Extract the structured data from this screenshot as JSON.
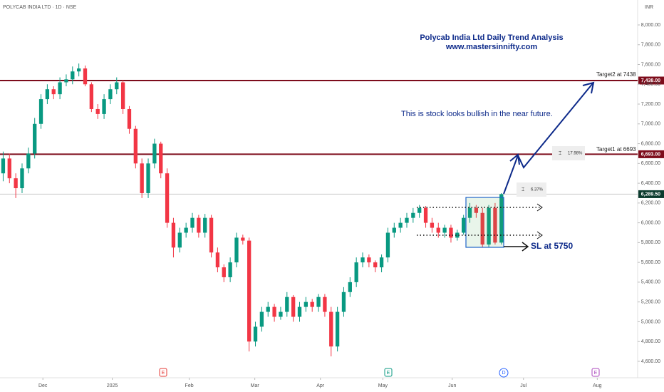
{
  "chart_data": {
    "type": "candlestick",
    "symbol": "POLYCAB INDIA LTD · 1D · NSE",
    "currency": "INR",
    "title": "Polycab India Ltd Daily Trend Analysis",
    "subtitle": "www.mastersinnifty.com",
    "annotations": [
      "This is stock looks bullish in the near future.",
      "Target2 at 7438",
      "Target1 at 6693",
      "SL at 5750",
      "17.98%",
      "6.37%"
    ],
    "up_color": "#089981",
    "down_color": "#f23645",
    "open": [
      6500,
      6650,
      6450,
      6350,
      6550,
      6700,
      7000,
      7250,
      7350,
      7300,
      7420,
      7450,
      7530,
      7560,
      7400,
      7150,
      7100,
      7250,
      7350,
      7420,
      7150,
      6950,
      6600,
      6300,
      6600,
      6800,
      6500,
      6000,
      5750,
      5900,
      5950,
      6050,
      5900,
      6050,
      5700,
      5550,
      5450,
      5600,
      5850,
      5820,
      4800,
      4950,
      5100,
      5150,
      5050,
      5100,
      5250,
      5050,
      5150,
      5200,
      5150,
      5250,
      5100,
      4750,
      5100,
      5300,
      5400,
      5600,
      5650,
      5600,
      5550,
      5650,
      5900,
      5950,
      6000,
      6050,
      6100,
      6150,
      6000,
      5950,
      5900,
      5950,
      5850,
      5900,
      6050,
      6150,
      6100,
      5780,
      6150,
      5800
    ],
    "high": [
      6720,
      6700,
      6500,
      6600,
      6760,
      7060,
      7300,
      7400,
      7380,
      7470,
      7500,
      7580,
      7610,
      7590,
      7420,
      7200,
      7300,
      7400,
      7470,
      7440,
      7180,
      6980,
      6650,
      6650,
      6850,
      6820,
      6550,
      6050,
      5950,
      6000,
      6100,
      6080,
      6090,
      6080,
      5750,
      5580,
      5650,
      5900,
      5880,
      5850,
      5000,
      5150,
      5200,
      5180,
      5150,
      5300,
      5270,
      5200,
      5250,
      5230,
      5280,
      5280,
      5150,
      5150,
      5350,
      5450,
      5650,
      5700,
      5680,
      5620,
      5680,
      5950,
      6000,
      6050,
      6100,
      6150,
      6180,
      6170,
      6050,
      6000,
      5980,
      5980,
      5930,
      6080,
      6200,
      6180,
      6150,
      6180,
      6200,
      6300
    ],
    "low": [
      6420,
      6400,
      6250,
      6300,
      6500,
      6650,
      6950,
      7200,
      7250,
      7250,
      7380,
      7400,
      7480,
      7380,
      7120,
      7050,
      7050,
      7200,
      7300,
      7100,
      6900,
      6550,
      6250,
      6250,
      6550,
      6450,
      5950,
      5650,
      5700,
      5850,
      5900,
      5850,
      5850,
      5650,
      5500,
      5400,
      5400,
      5550,
      5780,
      4700,
      4750,
      4900,
      5050,
      5000,
      5020,
      5050,
      5000,
      5000,
      5100,
      5100,
      5100,
      5050,
      4650,
      4700,
      5050,
      5250,
      5350,
      5550,
      5550,
      5500,
      5500,
      5600,
      5850,
      5900,
      5950,
      6000,
      6050,
      5950,
      5900,
      5850,
      5850,
      5800,
      5820,
      5880,
      6000,
      6050,
      5750,
      5750,
      5780,
      5780
    ],
    "close": [
      6650,
      6450,
      6350,
      6550,
      6700,
      7000,
      7250,
      7350,
      7300,
      7420,
      7450,
      7530,
      7560,
      7400,
      7150,
      7100,
      7250,
      7350,
      7420,
      7150,
      6950,
      6600,
      6300,
      6600,
      6800,
      6500,
      6000,
      5750,
      5900,
      5950,
      6050,
      5900,
      6050,
      5700,
      5550,
      5450,
      5600,
      5850,
      5820,
      4800,
      4950,
      5100,
      5150,
      5050,
      5100,
      5250,
      5050,
      5150,
      5200,
      5150,
      5250,
      5100,
      4750,
      5100,
      5300,
      5400,
      5600,
      5650,
      5600,
      5550,
      5650,
      5900,
      5950,
      6000,
      6050,
      6100,
      6150,
      6000,
      5950,
      5900,
      5950,
      5850,
      5900,
      6050,
      6150,
      6100,
      5780,
      6150,
      5800,
      6289.5
    ],
    "xlim": [
      -0.5,
      100.6
    ],
    "xticks": [
      {
        "value": 6.3,
        "label": "Dec"
      },
      {
        "value": 17.3,
        "label": "2025"
      },
      {
        "value": 29.5,
        "label": "Feb"
      },
      {
        "value": 39.9,
        "label": "Mar"
      },
      {
        "value": 50.3,
        "label": "Apr"
      },
      {
        "value": 60.2,
        "label": "May"
      },
      {
        "value": 71.2,
        "label": "Jun"
      },
      {
        "value": 82.5,
        "label": "Jul"
      },
      {
        "value": 94.2,
        "label": "Aug"
      }
    ],
    "ylim": [
      4434,
      8252
    ],
    "yticks": [
      {
        "value": 4600,
        "label": "4,600.00"
      },
      {
        "value": 4800,
        "label": "4,800.00"
      },
      {
        "value": 5000,
        "label": "5,000.00"
      },
      {
        "value": 5200,
        "label": "5,200.00"
      },
      {
        "value": 5400,
        "label": "5,400.00"
      },
      {
        "value": 5600,
        "label": "5,600.00"
      },
      {
        "value": 5800,
        "label": "5,800.00"
      },
      {
        "value": 6000,
        "label": "6,000.00"
      },
      {
        "value": 6200,
        "label": "6,200.00"
      },
      {
        "value": 6400,
        "label": "6,400.00"
      },
      {
        "value": 6600,
        "label": "6,600.00"
      },
      {
        "value": 6800,
        "label": "6,800.00"
      },
      {
        "value": 7000,
        "label": "7,000.00"
      },
      {
        "value": 7200,
        "label": "7,200.00"
      },
      {
        "value": 7400,
        "label": "7,400.00"
      },
      {
        "value": 7600,
        "label": "7,600.00"
      },
      {
        "value": 7800,
        "label": "7,800.00"
      },
      {
        "value": 8000,
        "label": "8,000.00"
      }
    ],
    "levels": [
      {
        "value": 7438,
        "label": "7,438.00",
        "color": "#7d0c1b"
      },
      {
        "value": 6693,
        "label": "6,693.00",
        "color": "#7d0c1b"
      },
      {
        "value": 6289.5,
        "label": "6,289.50",
        "color": "#c8c8c8"
      }
    ]
  }
}
